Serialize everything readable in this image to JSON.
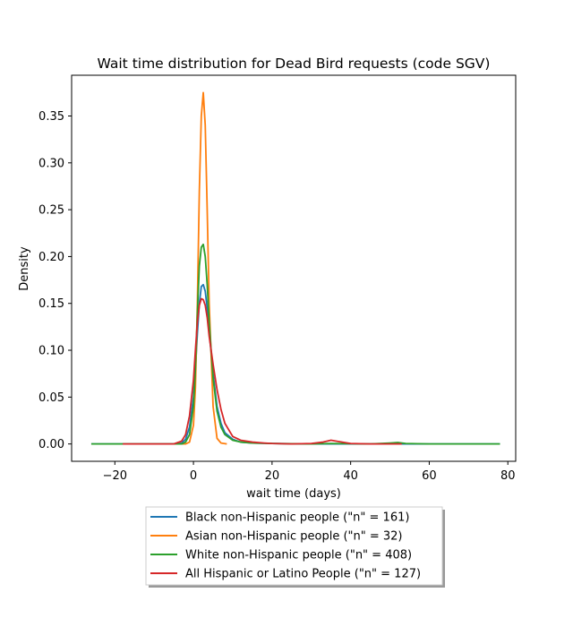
{
  "chart_data": {
    "type": "line",
    "title": "Wait time distribution  for Dead Bird requests (code SGV)",
    "xlabel": "wait time (days)",
    "ylabel": "Density",
    "xlim": [
      -31,
      82
    ],
    "ylim": [
      -0.0185,
      0.3935
    ],
    "xticks": [
      -20,
      0,
      20,
      40,
      60,
      80
    ],
    "yticks": [
      0.0,
      0.05,
      0.1,
      0.15,
      0.2,
      0.25,
      0.3,
      0.35
    ],
    "ytick_labels": [
      "0.00",
      "0.05",
      "0.10",
      "0.15",
      "0.20",
      "0.25",
      "0.30",
      "0.35"
    ],
    "grid": false,
    "legend_position": "below plot, centered",
    "series": [
      {
        "name": "Black non-Hispanic people (\"n\" = 161)",
        "color": "#1f77b4",
        "x": [
          -26,
          -5,
          -3,
          -2,
          -1,
          0,
          0.5,
          1,
          1.5,
          2,
          2.5,
          3,
          3.5,
          4,
          5,
          6,
          7,
          8,
          10,
          12,
          15,
          20,
          30,
          40,
          50,
          60,
          78
        ],
        "y": [
          0,
          0.0,
          0.001,
          0.005,
          0.018,
          0.05,
          0.08,
          0.118,
          0.15,
          0.168,
          0.17,
          0.163,
          0.145,
          0.12,
          0.075,
          0.04,
          0.022,
          0.012,
          0.005,
          0.002,
          0.001,
          0.0005,
          0.0,
          0.0,
          0.0,
          0.0,
          0
        ]
      },
      {
        "name": "Asian non-Hispanic people (\"n\" = 32)",
        "color": "#ff7f0e",
        "x": [
          -5,
          -2,
          -1,
          0,
          0.5,
          1,
          1.5,
          2,
          2.5,
          3,
          3.5,
          4,
          5,
          6,
          7,
          8.5
        ],
        "y": [
          0,
          0.0,
          0.002,
          0.02,
          0.06,
          0.15,
          0.27,
          0.35,
          0.375,
          0.34,
          0.25,
          0.15,
          0.04,
          0.006,
          0.001,
          0
        ]
      },
      {
        "name": "White non-Hispanic people (\"n\" = 408)",
        "color": "#2ca02c",
        "x": [
          -26,
          -5,
          -3,
          -2,
          -1,
          0,
          0.5,
          1,
          1.5,
          2,
          2.5,
          3,
          3.5,
          4,
          5,
          6,
          7,
          8,
          10,
          12,
          15,
          20,
          30,
          35,
          45,
          50,
          52,
          54,
          60,
          70,
          78
        ],
        "y": [
          0,
          0.0,
          0.0,
          0.002,
          0.01,
          0.04,
          0.08,
          0.14,
          0.19,
          0.21,
          0.213,
          0.2,
          0.17,
          0.13,
          0.07,
          0.035,
          0.018,
          0.01,
          0.004,
          0.002,
          0.001,
          0.0005,
          0.0,
          0.0005,
          0.0,
          0.001,
          0.0015,
          0.0005,
          0.0,
          0.0,
          0
        ]
      },
      {
        "name": "All Hispanic or Latino People (\"n\" = 127)",
        "color": "#d62728",
        "x": [
          -18,
          -5,
          -3,
          -2,
          -1,
          0,
          0.5,
          1,
          1.5,
          2,
          2.5,
          3,
          3.5,
          4,
          5,
          6,
          7,
          8,
          10,
          12,
          15,
          18,
          20,
          25,
          30,
          33,
          35,
          37,
          40,
          45,
          50,
          53
        ],
        "y": [
          0,
          0.0,
          0.003,
          0.01,
          0.03,
          0.068,
          0.1,
          0.13,
          0.148,
          0.155,
          0.154,
          0.148,
          0.135,
          0.115,
          0.085,
          0.058,
          0.037,
          0.022,
          0.008,
          0.004,
          0.002,
          0.001,
          0.0005,
          0.0,
          0.0005,
          0.002,
          0.004,
          0.0025,
          0.0005,
          0.0,
          0.0,
          0
        ]
      }
    ]
  }
}
